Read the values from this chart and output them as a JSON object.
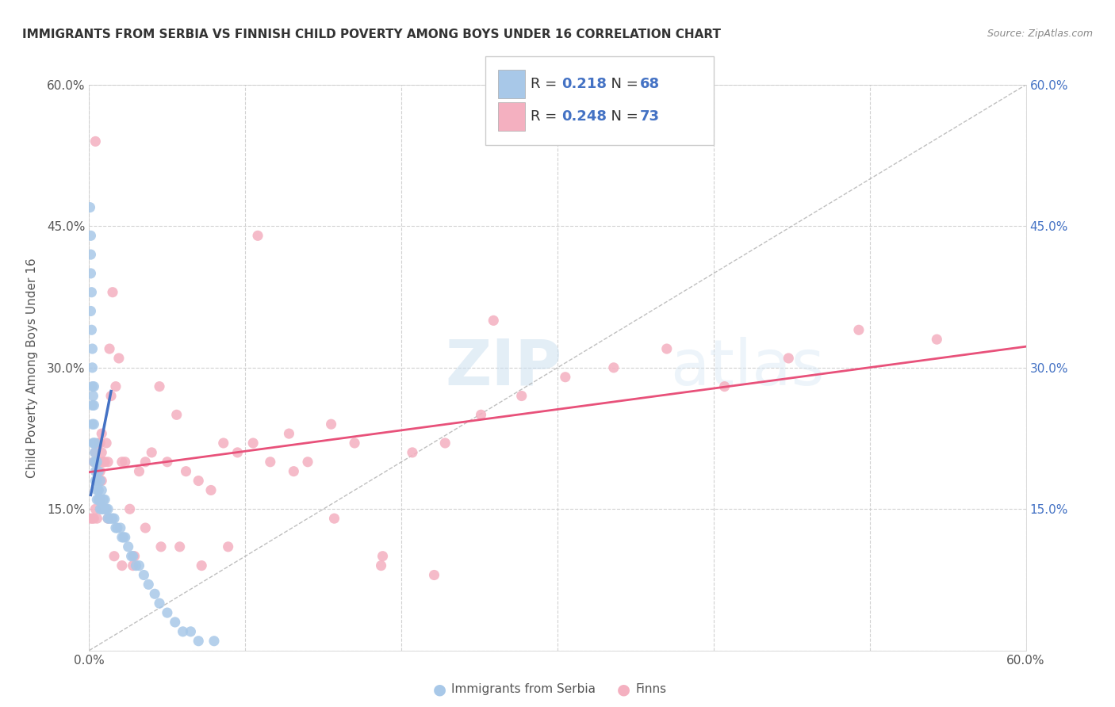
{
  "title": "IMMIGRANTS FROM SERBIA VS FINNISH CHILD POVERTY AMONG BOYS UNDER 16 CORRELATION CHART",
  "source": "Source: ZipAtlas.com",
  "ylabel": "Child Poverty Among Boys Under 16",
  "xlim": [
    0.0,
    0.6
  ],
  "ylim": [
    0.0,
    0.6
  ],
  "serbia_R": "0.218",
  "serbia_N": "68",
  "finns_R": "0.248",
  "finns_N": "73",
  "serbia_color": "#a8c8e8",
  "serbia_line_color": "#4472c4",
  "finns_color": "#f4b0c0",
  "finns_line_color": "#e8517a",
  "watermark_zip": "ZIP",
  "watermark_atlas": "atlas",
  "background_color": "#ffffff",
  "serbia_x": [
    0.0005,
    0.001,
    0.001,
    0.001,
    0.001,
    0.0015,
    0.0015,
    0.002,
    0.002,
    0.002,
    0.002,
    0.002,
    0.0025,
    0.0025,
    0.003,
    0.003,
    0.003,
    0.003,
    0.003,
    0.0035,
    0.004,
    0.004,
    0.004,
    0.004,
    0.005,
    0.005,
    0.005,
    0.005,
    0.006,
    0.006,
    0.006,
    0.007,
    0.007,
    0.007,
    0.008,
    0.008,
    0.009,
    0.009,
    0.01,
    0.01,
    0.011,
    0.012,
    0.012,
    0.013,
    0.014,
    0.015,
    0.016,
    0.017,
    0.018,
    0.02,
    0.021,
    0.022,
    0.023,
    0.025,
    0.027,
    0.028,
    0.03,
    0.032,
    0.035,
    0.038,
    0.042,
    0.045,
    0.05,
    0.055,
    0.06,
    0.065,
    0.07,
    0.08
  ],
  "serbia_y": [
    0.47,
    0.44,
    0.42,
    0.4,
    0.36,
    0.38,
    0.34,
    0.32,
    0.3,
    0.28,
    0.26,
    0.24,
    0.27,
    0.22,
    0.28,
    0.26,
    0.24,
    0.22,
    0.2,
    0.21,
    0.22,
    0.2,
    0.19,
    0.18,
    0.2,
    0.18,
    0.17,
    0.16,
    0.19,
    0.17,
    0.16,
    0.18,
    0.16,
    0.15,
    0.17,
    0.15,
    0.16,
    0.15,
    0.16,
    0.15,
    0.15,
    0.15,
    0.14,
    0.14,
    0.14,
    0.14,
    0.14,
    0.13,
    0.13,
    0.13,
    0.12,
    0.12,
    0.12,
    0.11,
    0.1,
    0.1,
    0.09,
    0.09,
    0.08,
    0.07,
    0.06,
    0.05,
    0.04,
    0.03,
    0.02,
    0.02,
    0.01,
    0.01
  ],
  "finns_x": [
    0.001,
    0.002,
    0.003,
    0.003,
    0.004,
    0.004,
    0.005,
    0.005,
    0.006,
    0.006,
    0.007,
    0.007,
    0.008,
    0.008,
    0.009,
    0.01,
    0.011,
    0.012,
    0.013,
    0.014,
    0.015,
    0.017,
    0.019,
    0.021,
    0.023,
    0.026,
    0.029,
    0.032,
    0.036,
    0.04,
    0.045,
    0.05,
    0.056,
    0.062,
    0.07,
    0.078,
    0.086,
    0.095,
    0.105,
    0.116,
    0.128,
    0.14,
    0.155,
    0.17,
    0.188,
    0.207,
    0.228,
    0.251,
    0.277,
    0.305,
    0.336,
    0.37,
    0.407,
    0.448,
    0.493,
    0.543,
    0.004,
    0.008,
    0.012,
    0.016,
    0.021,
    0.028,
    0.036,
    0.046,
    0.058,
    0.072,
    0.089,
    0.108,
    0.131,
    0.157,
    0.187,
    0.221,
    0.259
  ],
  "finns_y": [
    0.14,
    0.14,
    0.14,
    0.2,
    0.15,
    0.21,
    0.14,
    0.19,
    0.2,
    0.22,
    0.19,
    0.22,
    0.18,
    0.23,
    0.2,
    0.2,
    0.22,
    0.2,
    0.32,
    0.27,
    0.38,
    0.28,
    0.31,
    0.2,
    0.2,
    0.15,
    0.1,
    0.19,
    0.2,
    0.21,
    0.28,
    0.2,
    0.25,
    0.19,
    0.18,
    0.17,
    0.22,
    0.21,
    0.22,
    0.2,
    0.23,
    0.2,
    0.24,
    0.22,
    0.1,
    0.21,
    0.22,
    0.25,
    0.27,
    0.29,
    0.3,
    0.32,
    0.28,
    0.31,
    0.34,
    0.33,
    0.54,
    0.21,
    0.14,
    0.1,
    0.09,
    0.09,
    0.13,
    0.11,
    0.11,
    0.09,
    0.11,
    0.44,
    0.19,
    0.14,
    0.09,
    0.08,
    0.35
  ]
}
